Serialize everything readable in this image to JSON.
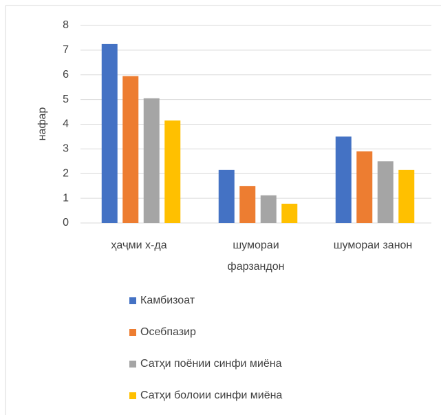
{
  "chart_data": {
    "type": "bar",
    "y_label": "нафар",
    "categories": [
      "ҳаҷми х-да",
      "шумораи фарзандон",
      "шумораи занон"
    ],
    "series": [
      {
        "name": "Камбизоат",
        "color": "#4472c4",
        "values": [
          7.25,
          2.15,
          3.5
        ]
      },
      {
        "name": "Осебпазир",
        "color": "#ed7d31",
        "values": [
          5.95,
          1.5,
          2.9
        ]
      },
      {
        "name": "Сатҳи поёнии синфи миёна",
        "color": "#a5a5a5",
        "values": [
          5.05,
          1.12,
          2.5
        ]
      },
      {
        "name": "Сатҳи болоии синфи миёна",
        "color": "#ffc000",
        "values": [
          4.15,
          0.78,
          2.15
        ]
      }
    ],
    "ylim": [
      0,
      8
    ],
    "yticks": [
      0,
      1,
      2,
      3,
      4,
      5,
      6,
      7,
      8
    ],
    "grid": true,
    "legend": "bottom"
  }
}
